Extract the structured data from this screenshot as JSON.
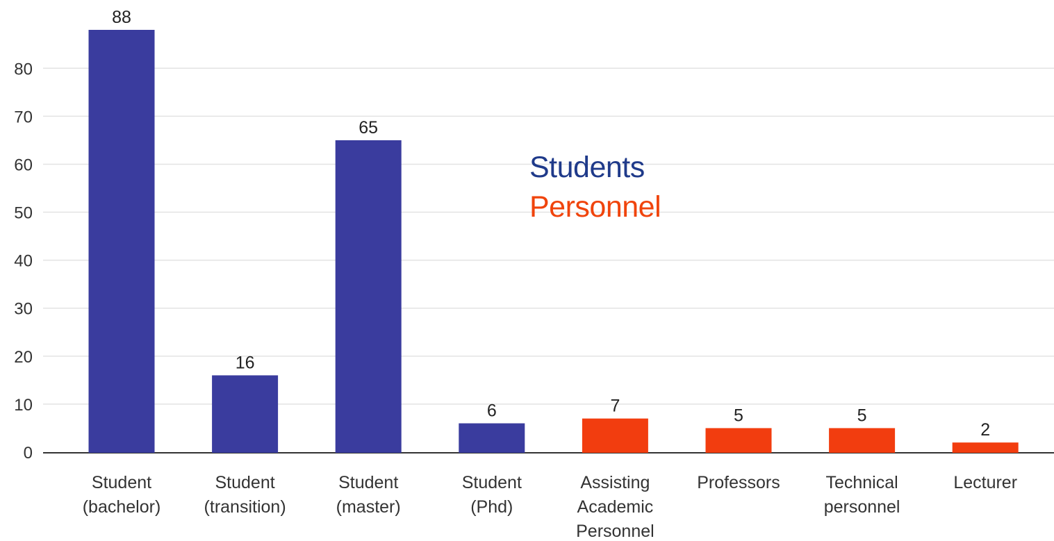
{
  "chart_data": {
    "type": "bar",
    "categories": [
      [
        "Student",
        "(bachelor)"
      ],
      [
        "Student",
        "(transition)"
      ],
      [
        "Student",
        "(master)"
      ],
      [
        "Student",
        "(Phd)"
      ],
      [
        "Assisting",
        "Academic",
        "Personnel"
      ],
      [
        "Professors"
      ],
      [
        "Technical",
        "personnel"
      ],
      [
        "Lecturer"
      ]
    ],
    "values": [
      88,
      16,
      65,
      6,
      7,
      5,
      5,
      2
    ],
    "groups": [
      "Students",
      "Students",
      "Students",
      "Students",
      "Personnel",
      "Personnel",
      "Personnel",
      "Personnel"
    ],
    "yticks": [
      0,
      10,
      20,
      30,
      40,
      50,
      60,
      70,
      80
    ],
    "ylim": [
      0,
      88
    ],
    "grid": true,
    "legend_position": "center",
    "colors": {
      "Students": "#3a3c9e",
      "Personnel": "#f23d0f"
    }
  },
  "legend": {
    "students_label": "Students",
    "personnel_label": "Personnel",
    "students_color": "#1f3a8a",
    "personnel_color": "#f0440c"
  }
}
